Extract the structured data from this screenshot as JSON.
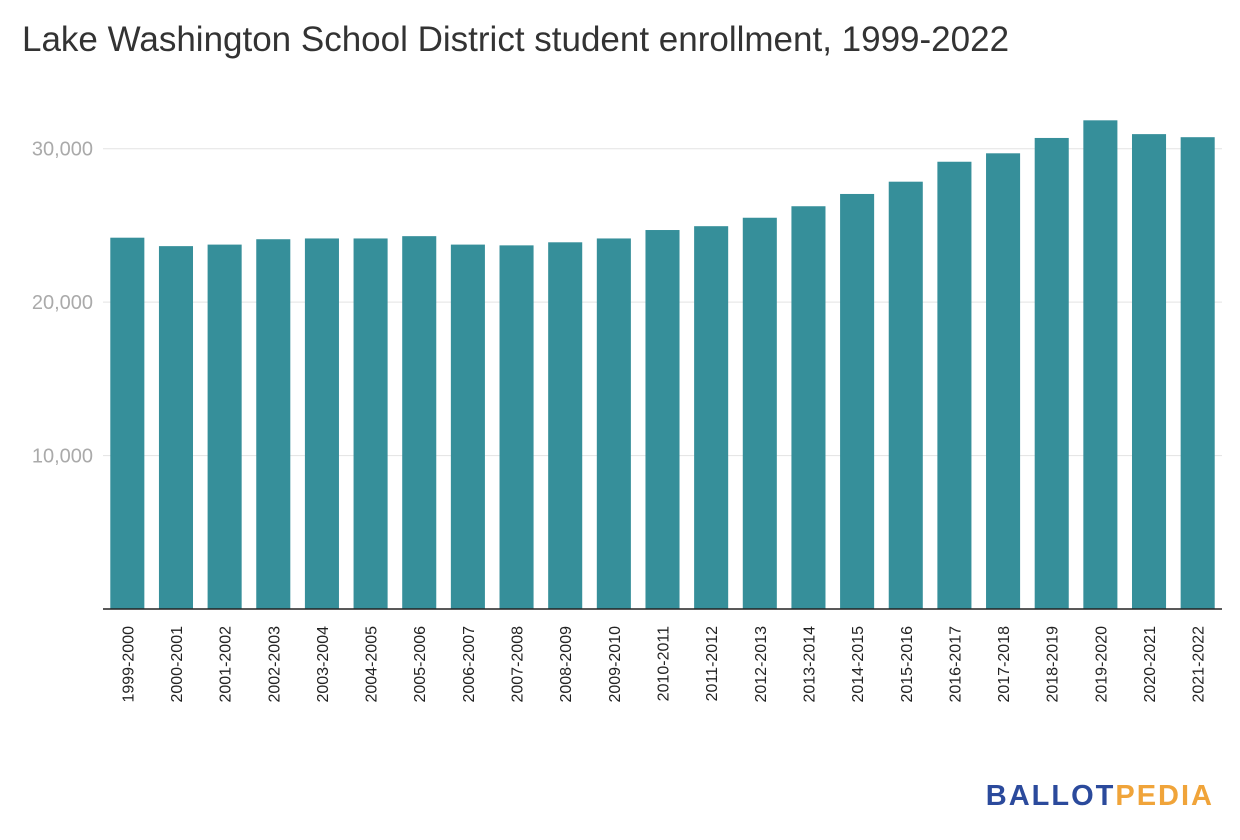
{
  "chart_data": {
    "type": "bar",
    "title": "Lake Washington School District student enrollment, 1999-2022",
    "xlabel": "",
    "ylabel": "",
    "categories": [
      "1999-2000",
      "2000-2001",
      "2001-2002",
      "2002-2003",
      "2003-2004",
      "2004-2005",
      "2005-2006",
      "2006-2007",
      "2007-2008",
      "2008-2009",
      "2009-2010",
      "2010-2011",
      "2011-2012",
      "2012-2013",
      "2013-2014",
      "2014-2015",
      "2015-2016",
      "2016-2017",
      "2017-2018",
      "2018-2019",
      "2019-2020",
      "2020-2021",
      "2021-2022"
    ],
    "values": [
      24200,
      23650,
      23750,
      24100,
      24150,
      24150,
      24300,
      23750,
      23700,
      23900,
      24150,
      24700,
      24950,
      25500,
      26250,
      27050,
      27850,
      29150,
      29700,
      30700,
      31850,
      30950,
      30750
    ],
    "ylim": [
      0,
      33500
    ],
    "yticks": [
      10000,
      20000,
      30000
    ],
    "ytick_labels": [
      "10,000",
      "20,000",
      "30,000"
    ],
    "grid": true,
    "legend": "none",
    "bar_color": "#368f9a"
  },
  "branding": {
    "logo_part1": "BALLOT",
    "logo_part2": "PEDIA"
  }
}
